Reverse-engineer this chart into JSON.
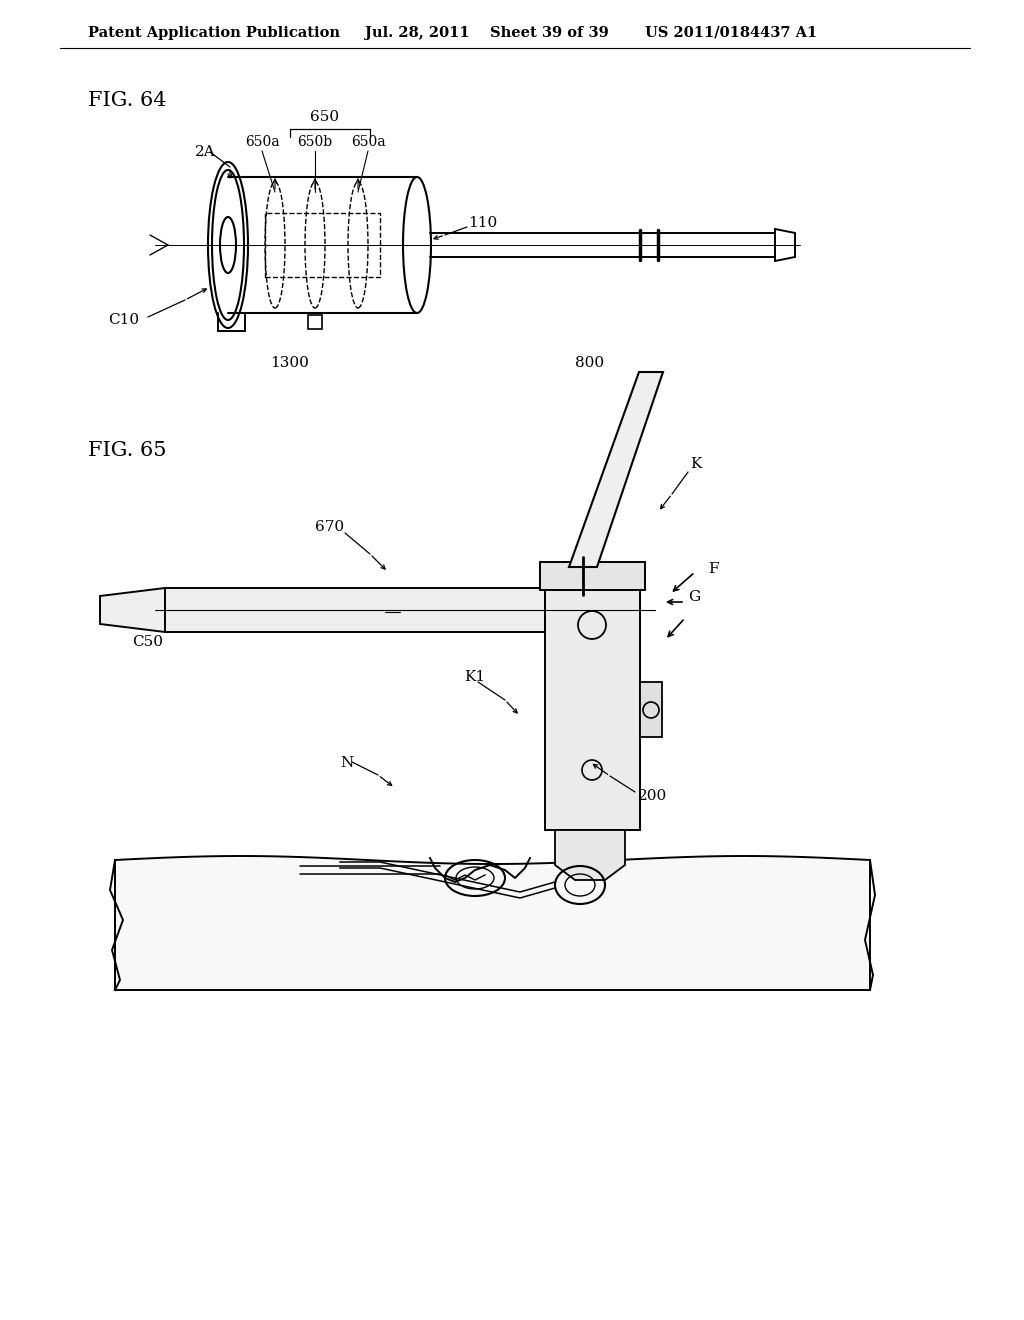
{
  "background_color": "#ffffff",
  "header_text": "Patent Application Publication",
  "header_date": "Jul. 28, 2011",
  "header_sheet": "Sheet 39 of 39",
  "header_patent": "US 2011/0184437 A1",
  "fig64_label": "FIG. 64",
  "fig65_label": "FIG. 65",
  "text_color": "#000000",
  "line_color": "#000000",
  "header_font_size": 10.5,
  "fig_label_font_size": 15,
  "annotation_font_size": 10
}
